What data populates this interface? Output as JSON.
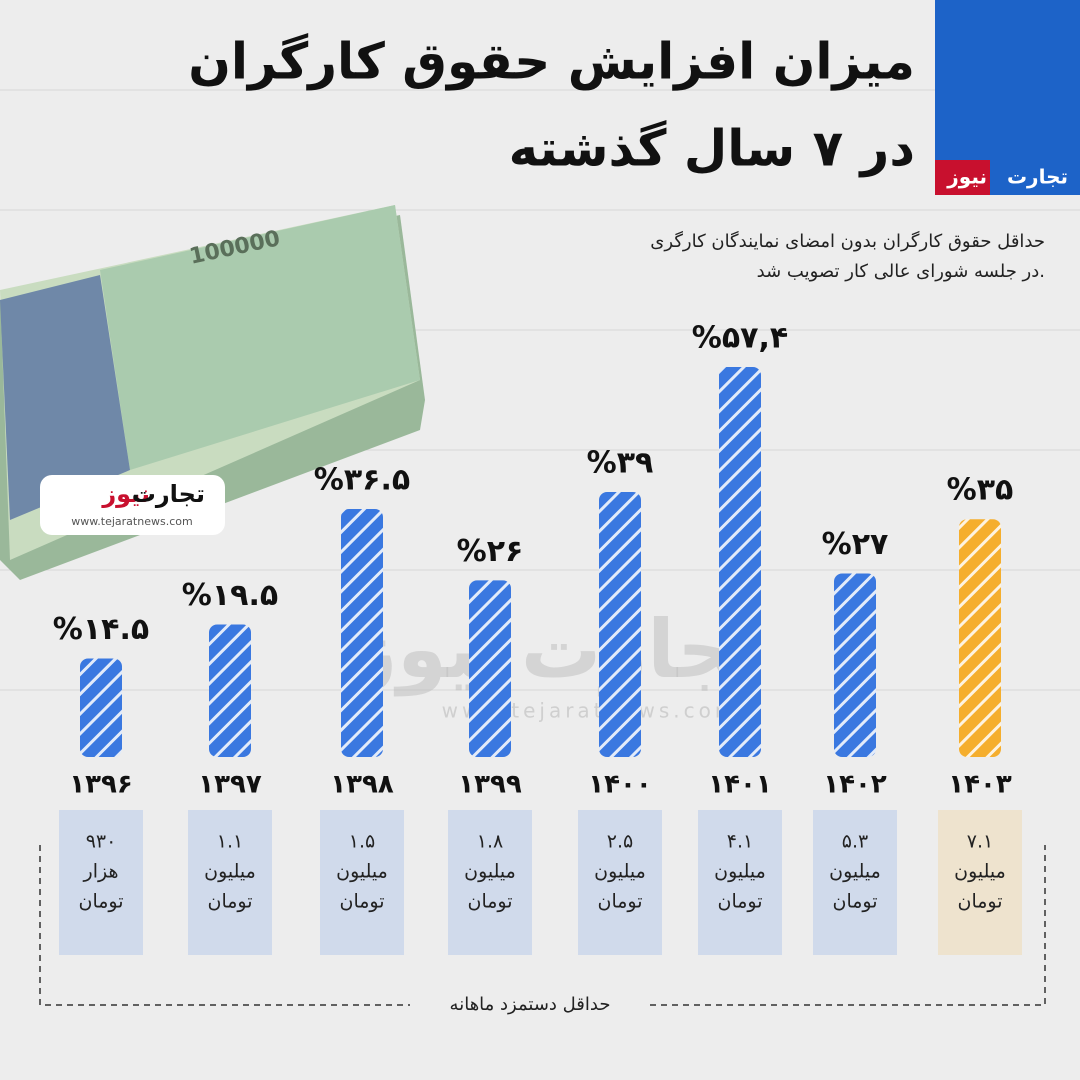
{
  "title": [
    "میزان افزایش حقوق کارگران",
    "در ۷ سال گذشته"
  ],
  "subtitle": [
    "حداقل حقوق کارگران بدون امضای نمایندگان کارگری",
    "در جلسه شورای عالی کار تصویب شد."
  ],
  "brand": {
    "name1": "تجارت",
    "name2": "نیوز",
    "url": "www.tejaratnews.com"
  },
  "chart_data": {
    "type": "bar",
    "categories": [
      "۱۳۹۶",
      "۱۳۹۷",
      "۱۳۹۸",
      "۱۳۹۹",
      "۱۴۰۰",
      "۱۴۰۱",
      "۱۴۰۲",
      "۱۴۰۳"
    ],
    "values": [
      14.5,
      19.5,
      36.5,
      26,
      39,
      57.4,
      27,
      35
    ],
    "value_labels": [
      "%۱۴.۵",
      "%۱۹.۵",
      "%۳۶.۵",
      "%۲۶",
      "%۳۹",
      "%۵۷,۴",
      "%۲۷",
      "%۳۵"
    ],
    "colors": [
      "#3a78e0",
      "#3a78e0",
      "#3a78e0",
      "#3a78e0",
      "#3a78e0",
      "#3a78e0",
      "#3a78e0",
      "#f5ae2d"
    ]
  },
  "wages": {
    "label": "حداقل دستمزد ماهانه",
    "items": [
      {
        "amount": "۹۳۰",
        "unit": "هزار",
        "currency": "تومان"
      },
      {
        "amount": "۱.۱",
        "unit": "میلیون",
        "currency": "تومان"
      },
      {
        "amount": "۱.۵",
        "unit": "میلیون",
        "currency": "تومان"
      },
      {
        "amount": "۱.۸",
        "unit": "میلیون",
        "currency": "تومان"
      },
      {
        "amount": "۲.۵",
        "unit": "میلیون",
        "currency": "تومان"
      },
      {
        "amount": "۴.۱",
        "unit": "میلیون",
        "currency": "تومان"
      },
      {
        "amount": "۵.۳",
        "unit": "میلیون",
        "currency": "تومان"
      },
      {
        "amount": "۷.۱",
        "unit": "میلیون",
        "currency": "تومان"
      }
    ]
  }
}
